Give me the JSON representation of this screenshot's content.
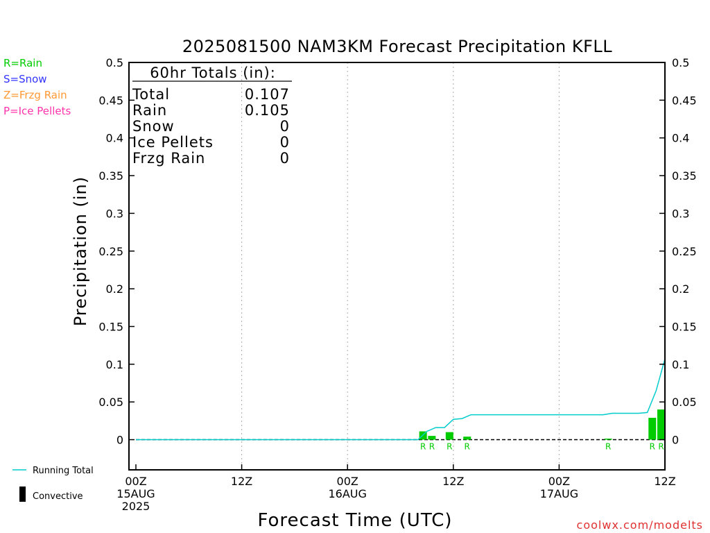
{
  "chart_data": {
    "type": "bar",
    "title": "2025081500 NAM3KM Forecast Precipitation KFLL",
    "xlabel": "Forecast Time (UTC)",
    "ylabel": "Precipitation (in)",
    "ylim": [
      -0.04,
      0.5
    ],
    "xlim": [
      0,
      60
    ],
    "yticks": [
      "0",
      "0.05",
      "0.1",
      "0.15",
      "0.2",
      "0.25",
      "0.3",
      "0.35",
      "0.4",
      "0.45",
      "0.5"
    ],
    "xticks": [
      {
        "hour": 0,
        "lines": [
          "00Z",
          "15AUG",
          "2025"
        ]
      },
      {
        "hour": 12,
        "lines": [
          "12Z"
        ]
      },
      {
        "hour": 24,
        "lines": [
          "00Z",
          "16AUG"
        ]
      },
      {
        "hour": 36,
        "lines": [
          "12Z"
        ]
      },
      {
        "hour": 48,
        "lines": [
          "00Z",
          "17AUG"
        ]
      },
      {
        "hour": 60,
        "lines": [
          "12Z"
        ]
      }
    ],
    "grid": "vertical dotted at 12Z / 00Z",
    "series": [
      {
        "name": "Rain",
        "bars": [
          {
            "hour": 33,
            "value": 0.011
          },
          {
            "hour": 34,
            "value": 0.005
          },
          {
            "hour": 36,
            "value": 0.01
          },
          {
            "hour": 38,
            "value": 0.004
          },
          {
            "hour": 54,
            "value": 0.001
          },
          {
            "hour": 59,
            "value": 0.029
          },
          {
            "hour": 60,
            "value": 0.04
          }
        ]
      },
      {
        "name": "Running Total",
        "x": [
          0,
          32,
          33,
          34,
          35,
          36,
          37,
          38,
          39,
          53,
          54,
          57,
          58,
          59,
          60
        ],
        "y": [
          0,
          0,
          0.011,
          0.016,
          0.016,
          0.027,
          0.028,
          0.033,
          0.033,
          0.033,
          0.035,
          0.035,
          0.036,
          0.065,
          0.107
        ]
      }
    ],
    "ptype_marks": [
      {
        "hour": 33,
        "label": "R"
      },
      {
        "hour": 34,
        "label": "R"
      },
      {
        "hour": 36,
        "label": "R"
      },
      {
        "hour": 38,
        "label": "R"
      },
      {
        "hour": 54,
        "label": "R"
      },
      {
        "hour": 59,
        "label": "R"
      },
      {
        "hour": 60,
        "label": "R"
      }
    ],
    "type_legend": [
      {
        "label": "R=Rain",
        "color": "#00cc00"
      },
      {
        "label": "S=Snow",
        "color": "#3333ff"
      },
      {
        "label": "Z=Frzg Rain",
        "color": "#ff9933"
      },
      {
        "label": "P=Ice Pellets",
        "color": "#ff33aa"
      }
    ],
    "bottom_legend": [
      {
        "label": "Running Total",
        "color": "#00cccc",
        "kind": "line"
      },
      {
        "label": "Convective",
        "color": "#000000",
        "kind": "bar"
      }
    ],
    "totals": {
      "header": "60hr Totals (in):",
      "rows": [
        {
          "name": "Total",
          "value": "0.107"
        },
        {
          "name": "Rain",
          "value": "0.105"
        },
        {
          "name": "Snow",
          "value": "0"
        },
        {
          "name": "Ice Pellets",
          "value": "0"
        },
        {
          "name": "Frzg Rain",
          "value": "0"
        }
      ]
    },
    "footer": "coolwx.com/modelts",
    "colors": {
      "bar": "#00cc00",
      "line": "#00cccc",
      "frame": "#000000"
    }
  }
}
